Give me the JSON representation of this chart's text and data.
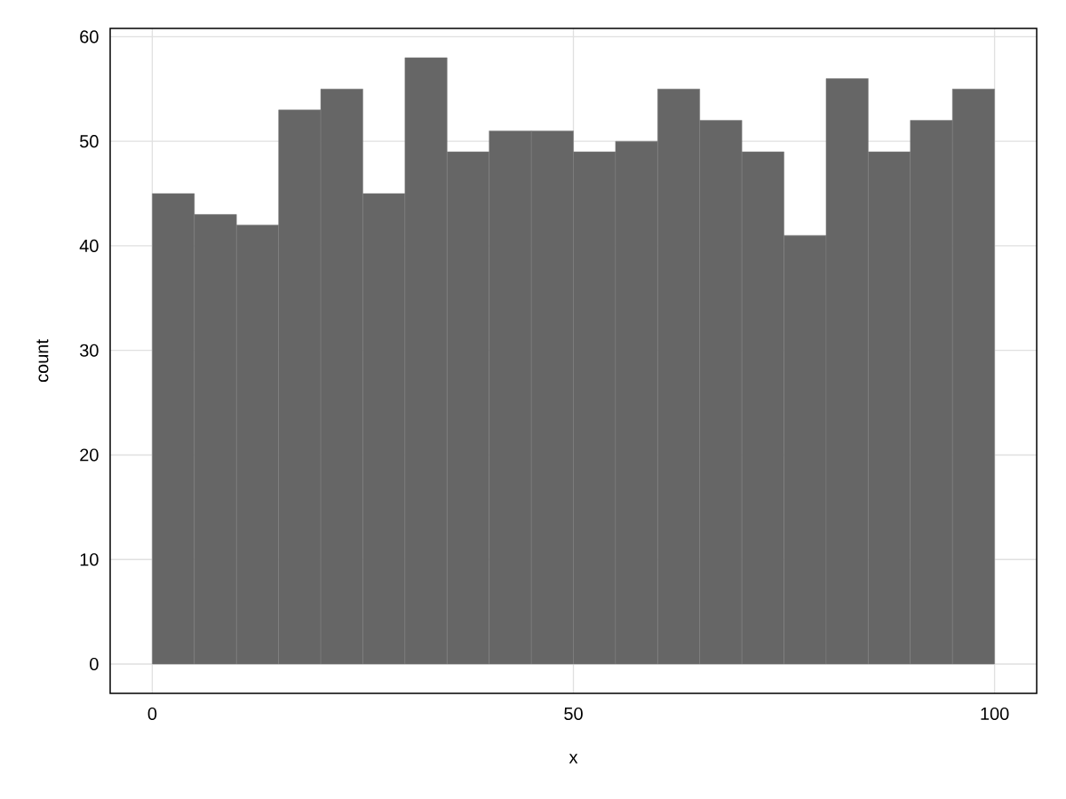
{
  "chart_data": {
    "type": "histogram",
    "xlabel": "x",
    "ylabel": "count",
    "bins": [
      0,
      5,
      10,
      15,
      20,
      25,
      30,
      35,
      40,
      45,
      50,
      55,
      60,
      65,
      70,
      75,
      80,
      85,
      90,
      95,
      100
    ],
    "values": [
      45,
      43,
      42,
      53,
      55,
      45,
      58,
      49,
      51,
      51,
      49,
      50,
      55,
      52,
      49,
      41,
      56,
      49,
      52,
      55
    ],
    "color": "#666666",
    "xlim": [
      -5,
      105
    ],
    "ylim": [
      -2.8,
      60.8
    ],
    "xticks": [
      0,
      50,
      100
    ],
    "yticks": [
      0,
      10,
      20,
      30,
      40,
      50,
      60
    ],
    "grid": true
  }
}
